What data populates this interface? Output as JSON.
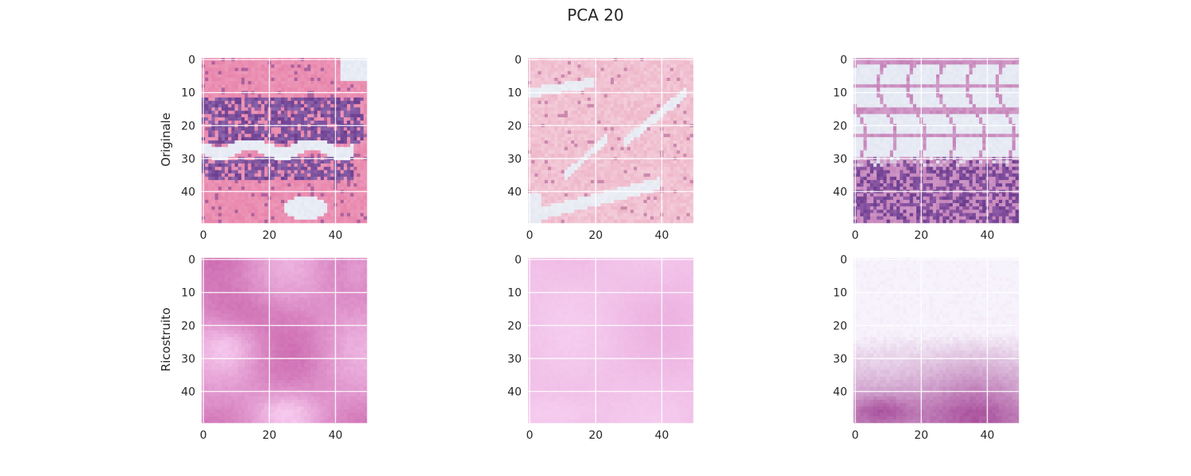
{
  "figure": {
    "title": "PCA 20"
  },
  "rows": [
    {
      "label": "Originale"
    },
    {
      "label": "Ricostruito"
    }
  ],
  "chart_data": [
    {
      "type": "heatmap",
      "row": "Originale",
      "col": 1,
      "xticks": [
        0,
        20,
        40
      ],
      "yticks": [
        0,
        10,
        20,
        30,
        40
      ],
      "xlim": [
        0,
        50
      ],
      "ylim": [
        50,
        0
      ],
      "grid": true,
      "colors": {
        "stroma": "#e884ab",
        "nuclei": "#6b3d8f",
        "fat": "#e4e8f3"
      }
    },
    {
      "type": "heatmap",
      "row": "Originale",
      "col": 2,
      "xticks": [
        0,
        20,
        40
      ],
      "yticks": [
        0,
        10,
        20,
        30,
        40
      ],
      "xlim": [
        0,
        50
      ],
      "ylim": [
        50,
        0
      ],
      "grid": true,
      "colors": {
        "stroma": "#eeb6c9",
        "nuclei": "#b46a9a",
        "fat": "#e6e9f2"
      }
    },
    {
      "type": "heatmap",
      "row": "Originale",
      "col": 3,
      "xticks": [
        0,
        20,
        40
      ],
      "yticks": [
        0,
        10,
        20,
        30,
        40
      ],
      "xlim": [
        0,
        50
      ],
      "ylim": [
        50,
        0
      ],
      "grid": true,
      "colors": {
        "stroma": "#c583b8",
        "nuclei": "#6b3d8f",
        "fat": "#e3e7f2"
      }
    },
    {
      "type": "heatmap",
      "row": "Ricostruito",
      "col": 1,
      "xticks": [
        0,
        20,
        40
      ],
      "yticks": [
        0,
        10,
        20,
        30,
        40
      ],
      "xlim": [
        0,
        50
      ],
      "ylim": [
        50,
        0
      ],
      "grid": true,
      "colors": {
        "dark": "#c04d9c",
        "light": "#f6c8ee"
      }
    },
    {
      "type": "heatmap",
      "row": "Ricostruito",
      "col": 2,
      "xticks": [
        0,
        20,
        40
      ],
      "yticks": [
        0,
        10,
        20,
        30,
        40
      ],
      "xlim": [
        0,
        50
      ],
      "ylim": [
        50,
        0
      ],
      "grid": true,
      "colors": {
        "dark": "#e9a8dc",
        "light": "#fadbf6"
      }
    },
    {
      "type": "heatmap",
      "row": "Ricostruito",
      "col": 3,
      "xticks": [
        0,
        20,
        40
      ],
      "yticks": [
        0,
        10,
        20,
        30,
        40
      ],
      "xlim": [
        0,
        50
      ],
      "ylim": [
        50,
        0
      ],
      "grid": true,
      "colors": {
        "dark": "#a13f93",
        "light": "#f7f3fc"
      }
    }
  ]
}
